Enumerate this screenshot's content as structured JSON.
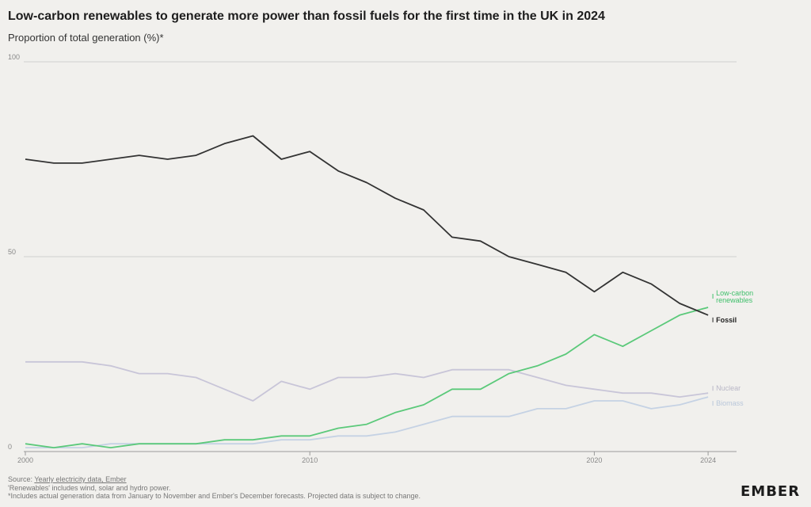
{
  "title": "Low-carbon renewables to generate more power than fossil fuels for the first time in the UK in 2024",
  "subtitle": "Proportion of total generation (%)*",
  "footer": {
    "source_prefix": "Source: ",
    "source_link": "Yearly electricity data, Ember",
    "note1": "'Renewables' includes wind, solar and hydro power.",
    "note2": "*Includes actual generation data from January to November and Ember's December forecasts. Projected data is subject to change."
  },
  "logo": "EMBER",
  "colors": {
    "fossil": "#333333",
    "renewables": "#5bc97a",
    "nuclear": "#c8c5d8",
    "biomass": "#c5d2e4",
    "grid": "#cfcfcf",
    "renewables_label": "#3fbf6a",
    "nuclear_label": "#b9b7c7",
    "biomass_label": "#b9c7da"
  },
  "chart_data": {
    "type": "line",
    "x": [
      2000,
      2001,
      2002,
      2003,
      2004,
      2005,
      2006,
      2007,
      2008,
      2009,
      2010,
      2011,
      2012,
      2013,
      2014,
      2015,
      2016,
      2017,
      2018,
      2019,
      2020,
      2021,
      2022,
      2023,
      2024
    ],
    "xticks": [
      "2000",
      "2010",
      "2020",
      "2024"
    ],
    "xtick_values": [
      2000,
      2010,
      2020,
      2024
    ],
    "yticks": [
      "0",
      "50",
      "100"
    ],
    "ytick_values": [
      0,
      50,
      100
    ],
    "ylim": [
      0,
      100
    ],
    "xlim": [
      2000,
      2025
    ],
    "grid": true,
    "series": [
      {
        "key": "fossil",
        "name": "Fossil",
        "label_lines": [
          "Fossil"
        ],
        "values": [
          75,
          74,
          74,
          75,
          76,
          75,
          76,
          79,
          81,
          75,
          77,
          72,
          69,
          65,
          62,
          55,
          54,
          50,
          48,
          46,
          41,
          46,
          43,
          38,
          35
        ]
      },
      {
        "key": "renewables",
        "name": "Low-carbon renewables",
        "label_lines": [
          "Low-carbon",
          "renewables"
        ],
        "values": [
          2,
          1,
          2,
          1,
          2,
          2,
          2,
          3,
          3,
          4,
          4,
          6,
          7,
          10,
          12,
          16,
          16,
          20,
          22,
          25,
          30,
          27,
          31,
          35,
          37
        ]
      },
      {
        "key": "nuclear",
        "name": "Nuclear",
        "label_lines": [
          "Nuclear"
        ],
        "values": [
          23,
          23,
          23,
          22,
          20,
          20,
          19,
          16,
          13,
          18,
          16,
          19,
          19,
          20,
          19,
          21,
          21,
          21,
          19,
          17,
          16,
          15,
          15,
          14,
          15
        ]
      },
      {
        "key": "biomass",
        "name": "Biomass",
        "label_lines": [
          "Biomass"
        ],
        "values": [
          1,
          1,
          1,
          2,
          2,
          2,
          2,
          2,
          2,
          3,
          3,
          4,
          4,
          5,
          7,
          9,
          9,
          9,
          11,
          11,
          13,
          13,
          11,
          12,
          14
        ]
      }
    ]
  }
}
